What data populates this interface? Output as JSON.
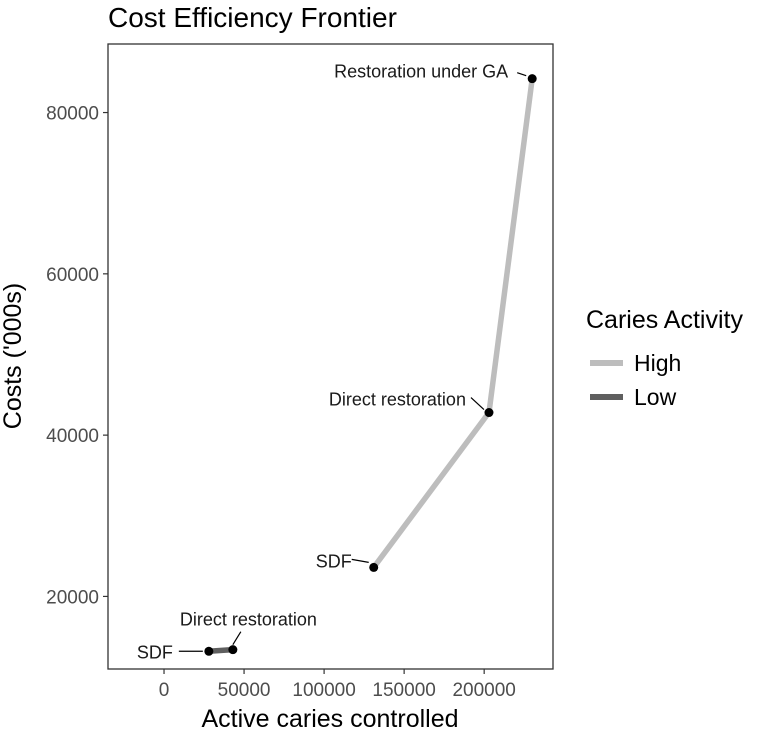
{
  "chart_data": {
    "type": "line",
    "title": "Cost Efficiency Frontier",
    "xlabel": "Active caries controlled",
    "ylabel": "Costs ('000s)",
    "xlim": [
      -35000,
      243000
    ],
    "ylim": [
      11000,
      88500
    ],
    "xticks": [
      0,
      50000,
      100000,
      150000,
      200000
    ],
    "xtick_labels": [
      "0",
      "50000",
      "100000",
      "150000",
      "200000"
    ],
    "yticks": [
      20000,
      40000,
      60000,
      80000
    ],
    "ytick_labels": [
      "20000",
      "40000",
      "60000",
      "80000"
    ],
    "grid": false,
    "legend_title": "Caries Activity",
    "legend_position": "right",
    "series": [
      {
        "name": "High",
        "color": "#bdbdbd",
        "points": [
          {
            "x": 131000,
            "y": 23600,
            "label": "SDF"
          },
          {
            "x": 203000,
            "y": 42800,
            "label": "Direct restoration"
          },
          {
            "x": 230000,
            "y": 84200,
            "label": "Restoration under GA"
          }
        ]
      },
      {
        "name": "Low",
        "color": "#5f5f5f",
        "points": [
          {
            "x": 28000,
            "y": 13200,
            "label": "SDF"
          },
          {
            "x": 43000,
            "y": 13400,
            "label": "Direct restoration"
          }
        ]
      }
    ]
  }
}
